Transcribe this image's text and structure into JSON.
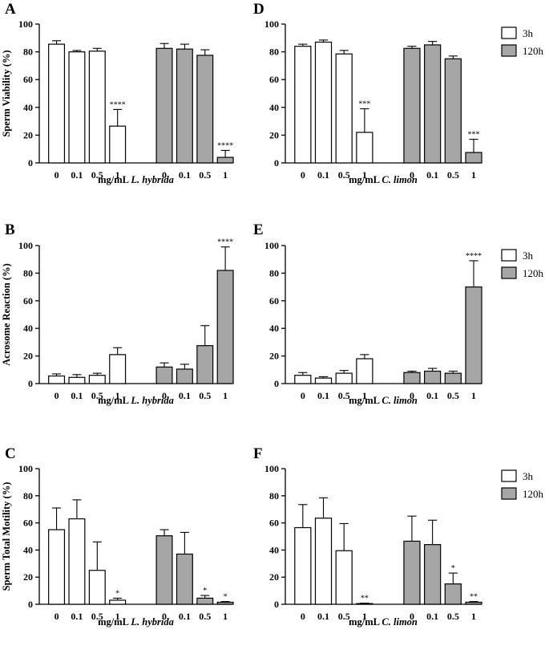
{
  "legend": {
    "items": [
      {
        "label": "3h",
        "fill": "#ffffff"
      },
      {
        "label": "120h",
        "fill": "#a6a6a6"
      }
    ]
  },
  "colors": {
    "series_3h": "#ffffff",
    "series_120h": "#a6a6a6",
    "stroke": "#000000"
  },
  "chart_data": [
    {
      "panel": "A",
      "type": "bar",
      "ylabel": "Sperm Viability (%)",
      "ylim": [
        0,
        100
      ],
      "yticks": [
        0,
        20,
        40,
        60,
        80,
        100
      ],
      "xlabel_prefix": "mg/mL ",
      "xlabel_species": "L. hybrida",
      "categories": [
        "0",
        "0.1",
        "0.5",
        "1"
      ],
      "series": [
        {
          "name": "3h",
          "values": [
            85.5,
            80,
            80.5,
            26.5
          ],
          "errors": [
            2.5,
            1,
            2,
            12
          ],
          "labels": [
            "",
            "",
            "",
            "****"
          ]
        },
        {
          "name": "120h",
          "values": [
            82.5,
            82,
            77.5,
            4
          ],
          "errors": [
            3.5,
            3.5,
            4,
            5
          ],
          "labels": [
            "",
            "",
            "",
            "****"
          ]
        }
      ]
    },
    {
      "panel": "D",
      "type": "bar",
      "ylabel": "",
      "ylim": [
        0,
        100
      ],
      "yticks": [
        0,
        20,
        40,
        60,
        80,
        100
      ],
      "xlabel_prefix": "mg/mL ",
      "xlabel_species": "C. limon",
      "categories": [
        "0",
        "0.1",
        "0.5",
        "1"
      ],
      "series": [
        {
          "name": "3h",
          "values": [
            84,
            87,
            78.5,
            22
          ],
          "errors": [
            1.5,
            1.5,
            2.5,
            17
          ],
          "labels": [
            "",
            "",
            "",
            "***"
          ]
        },
        {
          "name": "120h",
          "values": [
            82.5,
            85,
            75,
            7.5
          ],
          "errors": [
            1.5,
            2.5,
            2,
            9.5
          ],
          "labels": [
            "",
            "",
            "",
            "***"
          ]
        }
      ]
    },
    {
      "panel": "B",
      "type": "bar",
      "ylabel": "Acrosome Reaction (%)",
      "ylim": [
        0,
        100
      ],
      "yticks": [
        0,
        20,
        40,
        60,
        80,
        100
      ],
      "xlabel_prefix": "mg/mL ",
      "xlabel_species": "L. hybrida",
      "categories": [
        "0",
        "0.1",
        "0.5",
        "1"
      ],
      "series": [
        {
          "name": "3h",
          "values": [
            5.5,
            4.5,
            6,
            21
          ],
          "errors": [
            1.5,
            2,
            1.5,
            5
          ],
          "labels": [
            "",
            "",
            "",
            ""
          ]
        },
        {
          "name": "120h",
          "values": [
            12,
            10.5,
            27.5,
            82
          ],
          "errors": [
            3,
            3.5,
            14.5,
            17
          ],
          "labels": [
            "",
            "",
            "",
            "****"
          ]
        }
      ]
    },
    {
      "panel": "E",
      "type": "bar",
      "ylabel": "",
      "ylim": [
        0,
        100
      ],
      "yticks": [
        0,
        20,
        40,
        60,
        80,
        100
      ],
      "xlabel_prefix": "mg/mL ",
      "xlabel_species": "C. limon",
      "categories": [
        "0",
        "0.1",
        "0.5",
        "1"
      ],
      "series": [
        {
          "name": "3h",
          "values": [
            6,
            4,
            7.5,
            18
          ],
          "errors": [
            2,
            1,
            2,
            3
          ],
          "labels": [
            "",
            "",
            "",
            ""
          ]
        },
        {
          "name": "120h",
          "values": [
            8,
            9,
            7.5,
            70
          ],
          "errors": [
            1,
            2,
            1.5,
            19
          ],
          "labels": [
            "",
            "",
            "",
            "****"
          ]
        }
      ]
    },
    {
      "panel": "C",
      "type": "bar",
      "ylabel": "Sperm Total Motility (%)",
      "ylim": [
        0,
        100
      ],
      "yticks": [
        0,
        20,
        40,
        60,
        80,
        100
      ],
      "xlabel_prefix": "mg/mL ",
      "xlabel_species": "L. hybrida",
      "categories": [
        "0",
        "0.1",
        "0.5",
        "1"
      ],
      "series": [
        {
          "name": "3h",
          "values": [
            55,
            63,
            25,
            3
          ],
          "errors": [
            16,
            14,
            21,
            1.5
          ],
          "labels": [
            "",
            "",
            "",
            "*"
          ]
        },
        {
          "name": "120h",
          "values": [
            50.5,
            37,
            4.5,
            1.5
          ],
          "errors": [
            4.5,
            16,
            2,
            0.5
          ],
          "labels": [
            "",
            "",
            "*",
            "*"
          ]
        }
      ]
    },
    {
      "panel": "F",
      "type": "bar",
      "ylabel": "",
      "ylim": [
        0,
        100
      ],
      "yticks": [
        0,
        20,
        40,
        60,
        80,
        100
      ],
      "xlabel_prefix": "mg/mL ",
      "xlabel_species": "C. limon",
      "categories": [
        "0",
        "0.1",
        "0.5",
        "1"
      ],
      "series": [
        {
          "name": "3h",
          "values": [
            56.5,
            63.5,
            39.5,
            0.5
          ],
          "errors": [
            17,
            15,
            20,
            0.3
          ],
          "labels": [
            "",
            "",
            "",
            "**"
          ]
        },
        {
          "name": "120h",
          "values": [
            46.5,
            44,
            15,
            1.5
          ],
          "errors": [
            18.5,
            18,
            8,
            0.5
          ],
          "labels": [
            "",
            "",
            "*",
            "**"
          ]
        }
      ]
    }
  ]
}
